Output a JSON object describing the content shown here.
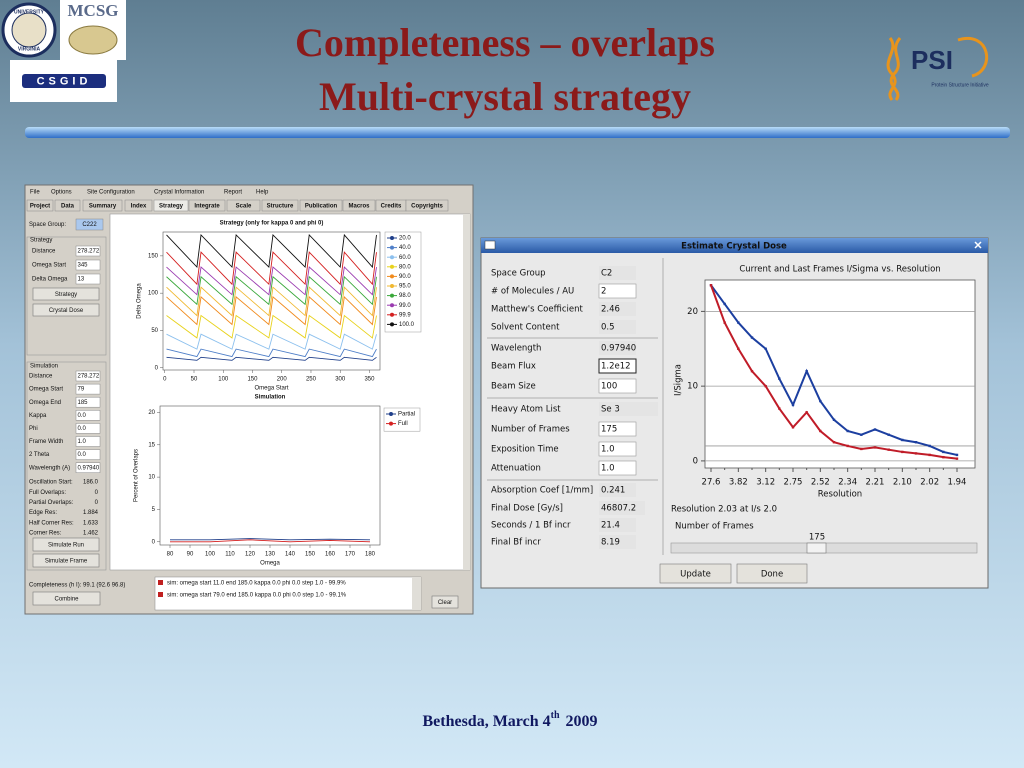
{
  "slide": {
    "title_lines": [
      "Completeness – overlaps",
      "Multi-crystal strategy"
    ],
    "footer": {
      "text": "Bethesda, March 4",
      "sup": "th",
      "year": "2009"
    },
    "logos": {
      "uva": [
        "UNIVERSITY",
        "VIRGINIA"
      ],
      "mcsg": "MCSG",
      "csgid": "CSGID",
      "psi": "PSI",
      "psi_sub": "Protein Structure Initiative"
    }
  },
  "app": {
    "menu": [
      "File",
      "Options",
      "Site Configuration",
      "Crystal Information",
      "Report",
      "Help"
    ],
    "tabs": [
      "Project",
      "Data",
      "Summary",
      "Index",
      "Strategy",
      "Integrate",
      "Scale",
      "Structure",
      "Publication",
      "Macros",
      "Credits",
      "Copyrights"
    ],
    "space_group": {
      "label": "Space Group:",
      "value": "C222"
    },
    "strategy_group": {
      "title": "Strategy",
      "fields": [
        [
          "Distance",
          "278.272"
        ],
        [
          "Omega Start",
          "345"
        ],
        [
          "Delta Omega",
          "13"
        ]
      ],
      "buttons": [
        "Strategy",
        "Crystal Dose"
      ]
    },
    "simulation_group": {
      "title": "Simulation",
      "fields": [
        [
          "Distance",
          "278.272"
        ],
        [
          "Omega Start",
          "79"
        ],
        [
          "Omega End",
          "185"
        ],
        [
          "Kappa",
          "0.0"
        ],
        [
          "Phi",
          "0.0"
        ],
        [
          "Frame Width",
          "1.0"
        ],
        [
          "2 Theta",
          "0.0"
        ],
        [
          "Wavelength (A)",
          "0.97940"
        ]
      ],
      "results": [
        [
          "Oscillation Start:",
          "186.0"
        ],
        [
          "Full Overlaps:",
          "0"
        ],
        [
          "Partial Overlaps:",
          "0"
        ],
        [
          "Edge Res:",
          "1.884"
        ],
        [
          "Half Corner Res:",
          "1.633"
        ],
        [
          "Corner Res:",
          "1.462"
        ]
      ],
      "buttons": [
        "Simulate Run",
        "Simulate Frame"
      ]
    },
    "completeness": "Completeness (h I): 99.1 (92.6 96.8)",
    "combine": "Combine",
    "log": [
      "sim: omega start 11.0 end 185.0 kappa 0.0 phi 0.0 step 1.0 - 99.9%",
      "sim: omega start 79.0 end 185.0 kappa 0.0 phi 0.0 step 1.0 - 99.1%"
    ],
    "clear": "Clear",
    "strategy_chart": {
      "type": "line",
      "title": "Strategy (only for kappa 0 and phi 0)",
      "x_label": "Omega Start",
      "y_label": "Delta Omega",
      "xlim": [
        -3,
        368
      ],
      "ylim": [
        -3,
        182
      ],
      "xticks": [
        0,
        50,
        100,
        150,
        200,
        250,
        300,
        350
      ],
      "yticks": [
        0,
        50,
        100,
        150
      ],
      "x": [
        3,
        55,
        62,
        115,
        122,
        178,
        185,
        240,
        247,
        300,
        307,
        355,
        362
      ],
      "series": [
        {
          "name": "20.0",
          "color": "#1f3f8a",
          "values": [
            14,
            10,
            14,
            10,
            14,
            10,
            14,
            10,
            14,
            10,
            14,
            10,
            14
          ]
        },
        {
          "name": "40.0",
          "color": "#4f7fc8",
          "values": [
            25,
            15,
            25,
            15,
            25,
            15,
            25,
            15,
            25,
            15,
            25,
            15,
            25
          ]
        },
        {
          "name": "60.0",
          "color": "#8cc0ee",
          "values": [
            45,
            25,
            45,
            25,
            45,
            25,
            45,
            25,
            45,
            25,
            45,
            25,
            45
          ]
        },
        {
          "name": "80.0",
          "color": "#e8d21c",
          "values": [
            70,
            40,
            70,
            40,
            70,
            40,
            70,
            40,
            70,
            40,
            70,
            40,
            70
          ]
        },
        {
          "name": "90.0",
          "color": "#f08a1c",
          "values": [
            95,
            58,
            95,
            58,
            95,
            58,
            95,
            58,
            95,
            58,
            95,
            58,
            95
          ]
        },
        {
          "name": "95.0",
          "color": "#f0b830",
          "values": [
            108,
            70,
            108,
            70,
            108,
            70,
            108,
            70,
            108,
            70,
            108,
            70,
            108
          ]
        },
        {
          "name": "98.0",
          "color": "#3aa83a",
          "values": [
            122,
            85,
            122,
            85,
            122,
            85,
            122,
            85,
            122,
            85,
            122,
            85,
            122
          ]
        },
        {
          "name": "99.0",
          "color": "#9a3ab0",
          "values": [
            135,
            98,
            135,
            98,
            135,
            98,
            135,
            98,
            135,
            98,
            135,
            98,
            135
          ]
        },
        {
          "name": "99.9",
          "color": "#d42020",
          "values": [
            155,
            112,
            155,
            112,
            155,
            112,
            155,
            112,
            155,
            112,
            155,
            112,
            155
          ]
        },
        {
          "name": "100.0",
          "color": "#111111",
          "values": [
            178,
            135,
            178,
            135,
            178,
            135,
            178,
            135,
            178,
            135,
            178,
            135,
            178
          ]
        }
      ]
    },
    "simulation_chart": {
      "type": "line",
      "title": "Simulation",
      "x_label": "Omega",
      "y_label": "Percent of Overlaps",
      "xlim": [
        75,
        185
      ],
      "ylim": [
        -0.5,
        21
      ],
      "xticks": [
        80,
        90,
        100,
        110,
        120,
        130,
        140,
        150,
        160,
        170,
        180
      ],
      "yticks": [
        0,
        5,
        10,
        15,
        20
      ],
      "x": [
        80,
        100,
        120,
        140,
        160,
        180
      ],
      "series": [
        {
          "name": "Partial",
          "color": "#1f3f8a",
          "values": [
            0.3,
            0.3,
            0.5,
            0.3,
            0.4,
            0.3
          ]
        },
        {
          "name": "Full",
          "color": "#d42020",
          "values": [
            0,
            0,
            0.3,
            0,
            0.2,
            0
          ]
        }
      ]
    }
  },
  "dialog": {
    "title": "Estimate Crystal Dose",
    "fields": [
      [
        "Space Group",
        "C2"
      ],
      [
        "# of Molecules / AU",
        "2"
      ],
      [
        "Matthew's Coefficient",
        "2.46"
      ],
      [
        "Solvent Content",
        "0.5"
      ],
      [
        "Wavelength",
        "0.97940"
      ],
      [
        "Beam Flux",
        "1.2e12"
      ],
      [
        "Beam Size",
        "100"
      ],
      [
        "Heavy Atom List",
        "Se 3"
      ],
      [
        "Number of Frames",
        "175"
      ],
      [
        "Exposition Time",
        "1.0"
      ],
      [
        "Attenuation",
        "1.0"
      ],
      [
        "Absorption Coef  [1/mm]",
        "0.241"
      ],
      [
        "Final Dose [Gy/s]",
        "46807.2"
      ],
      [
        "Seconds / 1 Bf incr",
        "21.4"
      ],
      [
        "Final Bf incr",
        "8.19"
      ]
    ],
    "resolution_text": "Resolution 2.03 at I/s 2.0",
    "frames_label": "Number of Frames",
    "frames_value": "175",
    "buttons": [
      "Update",
      "Done"
    ],
    "chart": {
      "type": "line",
      "title": "Current and Last Frames I/Sigma vs. Resolution",
      "x_label": "Resolution",
      "y_label": "I/Sigma",
      "categories": [
        "27.6",
        null,
        "3.82",
        null,
        "3.12",
        null,
        "2.75",
        null,
        "2.52",
        null,
        "2.34",
        null,
        "2.21",
        null,
        "2.10",
        null,
        "2.02",
        null,
        "1.94"
      ],
      "ylim": [
        -0.95,
        24.2
      ],
      "yticks": [
        0,
        10,
        20
      ],
      "grid": true,
      "reference_line": 2,
      "series": [
        {
          "color": "#1c3fa0",
          "values": [
            23.5,
            21,
            18.5,
            16.5,
            15,
            11,
            7.5,
            12,
            8,
            5.5,
            4,
            3.5,
            4.2,
            3.5,
            2.8,
            2.5,
            2,
            1.2,
            0.8
          ]
        },
        {
          "color": "#c01c28",
          "values": [
            23.5,
            18.5,
            15,
            12,
            10,
            7,
            4.5,
            6.5,
            4,
            2.5,
            2,
            1.6,
            1.8,
            1.5,
            1.2,
            1.0,
            0.8,
            0.5,
            0.3
          ]
        }
      ]
    }
  }
}
